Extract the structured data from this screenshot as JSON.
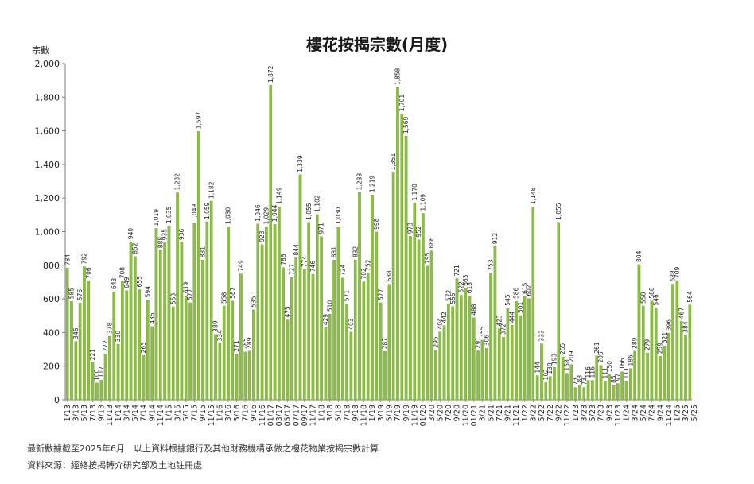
{
  "title": "樓花按揭宗數(月度)",
  "y_unit": "宗數",
  "footnotes": [
    "最新數據截至2025年6月　以上資料根據銀行及其他財務機構承做之樓花物業按揭宗數計算",
    "資料來源：經絡按揭轉介研究部及土地註冊處"
  ],
  "colors": {
    "bar_fill": "#8cbf3f",
    "bar_stroke": "#5f8f25",
    "grid": "#d9d9d9",
    "axis": "#7f7f7f"
  },
  "chart_data": {
    "type": "bar",
    "title": "樓花按揭宗數(月度)",
    "ylabel": "宗數",
    "ylim": [
      0,
      2000
    ],
    "yticks": [
      0,
      200,
      400,
      600,
      800,
      1000,
      1200,
      1400,
      1600,
      1800,
      2000
    ],
    "ytick_labels": [
      "0",
      "200",
      "400",
      "600",
      "800",
      "1,000",
      "1,200",
      "1,400",
      "1,600",
      "1,800",
      "2,000"
    ],
    "grid": false,
    "legend": "none",
    "x_tick_labels": [
      "1/13",
      "3/13",
      "5/13",
      "7/13",
      "9/13",
      "11/13",
      "1/14",
      "3/14",
      "5/14",
      "7/14",
      "9/14",
      "11/14",
      "1/15",
      "3/15",
      "5/15",
      "7/15",
      "9/15",
      "11/15",
      "1/16",
      "3/16",
      "5/16",
      "7/16",
      "9/16",
      "11/16",
      "01/17",
      "03/17",
      "05/17",
      "07/17",
      "09/17",
      "11/17",
      "1/18",
      "3/18",
      "5/18",
      "7/18",
      "9/18",
      "11/18",
      "1/19",
      "3/19",
      "5/19",
      "7/19",
      "9/19",
      "11/19",
      "01/20",
      "3/20",
      "5/20",
      "7/20",
      "9/20",
      "11/20",
      "01/21",
      "3/21",
      "5/21",
      "7/21",
      "9/21",
      "11/21",
      "1/22",
      "3/22",
      "5/22",
      "7/22",
      "9/22",
      "11/22",
      "1/23",
      "3/23",
      "5/23",
      "7/23",
      "9/23",
      "11/23",
      "1/24",
      "3/24",
      "5/24",
      "7/24",
      "9/24",
      "11/24",
      "1/25",
      "3/25",
      "5/25"
    ],
    "values": [
      784,
      585,
      346,
      576,
      792,
      706,
      221,
      100,
      117,
      272,
      378,
      643,
      330,
      708,
      649,
      940,
      852,
      655,
      263,
      594,
      436,
      1019,
      888,
      935,
      1035,
      553,
      1232,
      936,
      619,
      577,
      1049,
      1597,
      831,
      1059,
      1182,
      389,
      334,
      558,
      1030,
      587,
      271,
      749,
      285,
      289,
      535,
      1046,
      923,
      1029,
      1872,
      1044,
      1149,
      786,
      475,
      727,
      844,
      1339,
      774,
      1055,
      746,
      1102,
      971,
      429,
      510,
      831,
      1030,
      724,
      571,
      403,
      832,
      1233,
      702,
      752,
      1219,
      998,
      577,
      287,
      688,
      1351,
      1858,
      1701,
      1569,
      973,
      1170,
      952,
      1109,
      795,
      886,
      295,
      404,
      442,
      572,
      555,
      721,
      622,
      663,
      618,
      488,
      291,
      355,
      306,
      753,
      912,
      423,
      372,
      545,
      444,
      586,
      501,
      615,
      602,
      1148,
      144,
      333,
      102,
      139,
      193,
      1055,
      255,
      158,
      209,
      73,
      88,
      73,
      116,
      116,
      261,
      205,
      111,
      150,
      85,
      97,
      166,
      111,
      186,
      289,
      804,
      558,
      279,
      588,
      546,
      259,
      321,
      396,
      688,
      709,
      467,
      384,
      564
    ],
    "data_labels": [
      "784",
      "585",
      "346",
      "576",
      "792",
      "706",
      "221",
      "100",
      "117",
      "272",
      "378",
      "643",
      "330",
      "708",
      "649",
      "940",
      "852",
      "655",
      "263",
      "594",
      "436",
      "1,019",
      "888",
      "935",
      "1,035",
      "553",
      "1,232",
      "936",
      "619",
      "577",
      "1,049",
      "1,597",
      "831",
      "1,059",
      "1,182",
      "389",
      "334",
      "558",
      "1,030",
      "587",
      "271",
      "749",
      "285",
      "289",
      "535",
      "1,046",
      "923",
      "1,029",
      "1,872",
      "1,044",
      "1,149",
      "786",
      "475",
      "727",
      "844",
      "1,339",
      "774",
      "1,055",
      "746",
      "1,102",
      "971",
      "429",
      "510",
      "831",
      "1,030",
      "724",
      "571",
      "403",
      "832",
      "1,233",
      "702",
      "752",
      "1,219",
      "998",
      "577",
      "287",
      "688",
      "1,351",
      "1,858",
      "1,701",
      "1,569",
      "973",
      "1,170",
      "952",
      "1,109",
      "795",
      "886",
      "295",
      "404",
      "442",
      "572",
      "555",
      "721",
      "622",
      "663",
      "618",
      "488",
      "291",
      "355",
      "306",
      "753",
      "912",
      "423",
      "372",
      "545",
      "444",
      "586",
      "501",
      "615",
      "602",
      "1,148",
      "144",
      "333",
      "102",
      "139",
      "193",
      "1,055",
      "255",
      "158",
      "209",
      "73",
      "88",
      "73",
      "116",
      "116",
      "261",
      "205",
      "111",
      "150",
      "85",
      "97",
      "166",
      "111",
      "186",
      "289",
      "804",
      "558",
      "279",
      "588",
      "546",
      "259",
      "321",
      "396",
      "688",
      "709",
      "467",
      "384",
      "564"
    ]
  }
}
